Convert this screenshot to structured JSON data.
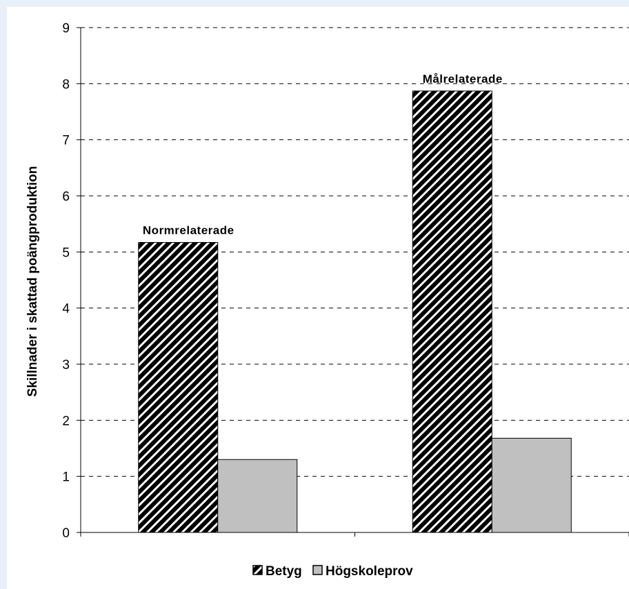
{
  "chart_data": {
    "type": "bar",
    "categories": [
      "Normrelaterade",
      "Målrelaterade"
    ],
    "series": [
      {
        "name": "Betyg",
        "values": [
          5.17,
          7.87
        ],
        "fill": "hatch"
      },
      {
        "name": "Högskoleprov",
        "values": [
          1.3,
          1.68
        ],
        "fill": "#c0c0c0"
      }
    ],
    "ylabel": "Skillnader i skattad poängproduktion",
    "xlabel": "",
    "ylim": [
      0,
      9
    ],
    "yticks": [
      "0",
      "1",
      "2",
      "3",
      "4",
      "5",
      "6",
      "7",
      "8",
      "9"
    ],
    "grid": true,
    "legend_position": "bottom"
  },
  "colors": {
    "page_background": "#e8f0fa",
    "plot_background": "#ffffff",
    "grid": "#000000",
    "hatch_dark": "#000000",
    "hatch_light": "#ffffff",
    "solid_bar": "#c0c0c0"
  }
}
